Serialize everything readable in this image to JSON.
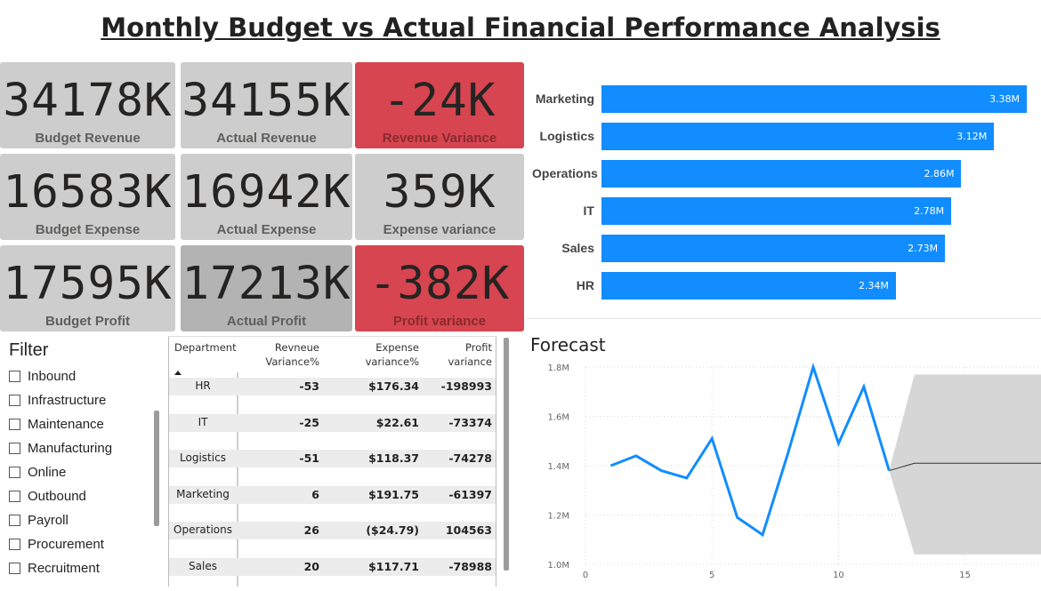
{
  "title": "Monthly Budget vs Actual Financial Performance Analysis",
  "colors": {
    "card_gray": "#cdcdcd",
    "card_dark_gray": "#b3b3b3",
    "card_red": "#d64550",
    "bar_blue": "#118dff",
    "forecast_band": "#d6d6d6"
  },
  "cards": [
    {
      "value": "34178K",
      "label": "Budget Revenue",
      "style": "gray"
    },
    {
      "value": "34155K",
      "label": "Actual Revenue",
      "style": "gray"
    },
    {
      "value": "-24K",
      "label": "Revenue Variance",
      "style": "red"
    },
    {
      "value": "16583K",
      "label": "Budget Expense",
      "style": "gray"
    },
    {
      "value": "16942K",
      "label": "Actual Expense",
      "style": "gray"
    },
    {
      "value": "359K",
      "label": "Expense variance",
      "style": "gray"
    },
    {
      "value": "17595K",
      "label": "Budget Profit",
      "style": "gray"
    },
    {
      "value": "17213K",
      "label": "Actual Profit",
      "style": "dark"
    },
    {
      "value": "-382K",
      "label": "Profit variance",
      "style": "red"
    }
  ],
  "filter": {
    "title": "Filter",
    "items": [
      "Inbound",
      "Infrastructure",
      "Maintenance",
      "Manufacturing",
      "Online",
      "Outbound",
      "Payroll",
      "Procurement",
      "Recruitment"
    ]
  },
  "table": {
    "headers": [
      "Department",
      "Revneue Variance%",
      "Expense variance%",
      "Profit variance"
    ],
    "header_lines": [
      [
        "Department"
      ],
      [
        "Revneue",
        "Variance%"
      ],
      [
        "Expense",
        "variance%"
      ],
      [
        "Profit",
        "variance"
      ]
    ],
    "sort_icon": "sort-up-icon",
    "rows": [
      {
        "dept": "HR",
        "rev": "-53",
        "exp": "$176.34",
        "profit": "-198993"
      },
      {
        "dept": "IT",
        "rev": "-25",
        "exp": "$22.61",
        "profit": "-73374"
      },
      {
        "dept": "Logistics",
        "rev": "-51",
        "exp": "$118.37",
        "profit": "-74278"
      },
      {
        "dept": "Marketing",
        "rev": "6",
        "exp": "$191.75",
        "profit": "-61397"
      },
      {
        "dept": "Operations",
        "rev": "26",
        "exp": "($24.79)",
        "profit": "104563"
      },
      {
        "dept": "Sales",
        "rev": "20",
        "exp": "$117.71",
        "profit": "-78988"
      }
    ]
  },
  "bar_chart": {
    "chart_data": {
      "type": "bar",
      "orientation": "horizontal",
      "categories": [
        "Marketing",
        "Logistics",
        "Operations",
        "IT",
        "Sales",
        "HR"
      ],
      "values": [
        3.38,
        3.12,
        2.86,
        2.78,
        2.73,
        2.34
      ],
      "labels": [
        "3.38M",
        "3.12M",
        "2.86M",
        "2.78M",
        "2.73M",
        "2.34M"
      ],
      "unit": "M",
      "xlim": [
        0,
        3.38
      ]
    }
  },
  "forecast": {
    "title": "Forecast",
    "chart_data": {
      "type": "line",
      "x": [
        1,
        2,
        3,
        4,
        5,
        6,
        7,
        8,
        9,
        10,
        11,
        12
      ],
      "values": [
        1.4,
        1.44,
        1.38,
        1.35,
        1.51,
        1.19,
        1.12,
        1.45,
        1.8,
        1.49,
        1.72,
        1.38
      ],
      "forecast_x": [
        12,
        13,
        14,
        15,
        16,
        17,
        18
      ],
      "forecast_values": [
        1.38,
        1.41,
        1.41,
        1.41,
        1.41,
        1.41,
        1.41
      ],
      "band_upper": [
        1.38,
        1.77,
        1.77,
        1.77,
        1.77,
        1.77,
        1.77
      ],
      "band_lower": [
        1.38,
        1.04,
        1.04,
        1.04,
        1.04,
        1.04,
        1.04
      ],
      "xlim": [
        0,
        18
      ],
      "ylim": [
        1.0,
        1.8
      ],
      "x_ticks": [
        "0",
        "5",
        "10",
        "15"
      ],
      "x_tick_values": [
        0,
        5,
        10,
        15
      ],
      "y_ticks": [
        "1.0M",
        "1.2M",
        "1.4M",
        "1.6M",
        "1.8M"
      ],
      "y_tick_values": [
        1.0,
        1.2,
        1.4,
        1.6,
        1.8
      ],
      "grid": true
    }
  }
}
